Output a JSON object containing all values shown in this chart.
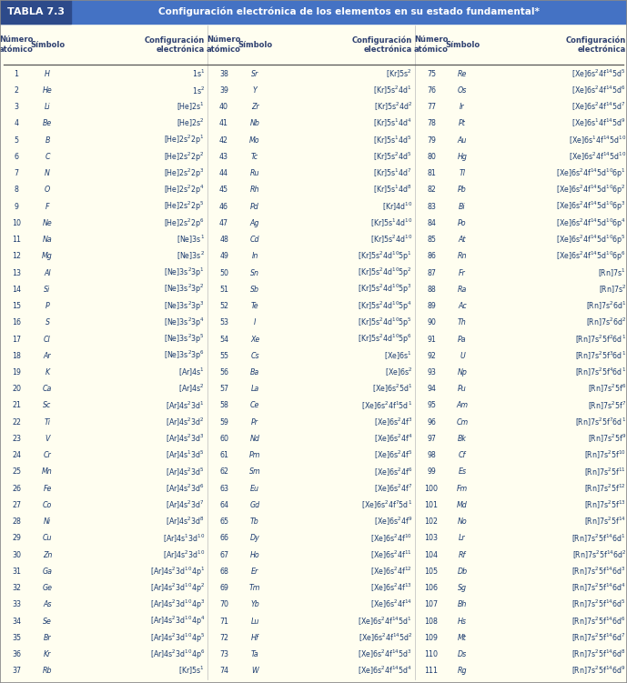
{
  "title": "TABLA 7.3",
  "title_text": "Configuración electrónica de los elementos en su estado fundamental*",
  "header_bg": "#5b8dd9",
  "header_bg2": "#4472c4",
  "table_bg": "#fffef0",
  "title_box_bg": "#2d4a8a",
  "header_text_color": "#ffffff",
  "col_header_color": "#2e4070",
  "data_color": "#1a3a6e",
  "rows": [
    [
      1,
      "H",
      "1s$^1$",
      38,
      "Sr",
      "[Kr]5s$^2$",
      75,
      "Re",
      "[Xe]6s$^2$4f$^{14}$5d$^5$"
    ],
    [
      2,
      "He",
      "1s$^2$",
      39,
      "Y",
      "[Kr]5s$^2$4d$^1$",
      76,
      "Os",
      "[Xe]6s$^2$4f$^{14}$5d$^6$"
    ],
    [
      3,
      "Li",
      "[He]2s$^1$",
      40,
      "Zr",
      "[Kr]5s$^2$4d$^2$",
      77,
      "Ir",
      "[Xe]6s$^2$4f$^{14}$5d$^7$"
    ],
    [
      4,
      "Be",
      "[He]2s$^2$",
      41,
      "Nb",
      "[Kr]5s$^1$4d$^4$",
      78,
      "Pt",
      "[Xe]6s$^1$4f$^{14}$5d$^9$"
    ],
    [
      5,
      "B",
      "[He]2s$^2$2p$^1$",
      42,
      "Mo",
      "[Kr]5s$^1$4d$^5$",
      79,
      "Au",
      "[Xe]6s$^1$4f$^{14}$5d$^{10}$"
    ],
    [
      6,
      "C",
      "[He]2s$^2$2p$^2$",
      43,
      "Tc",
      "[Kr]5s$^2$4d$^5$",
      80,
      "Hg",
      "[Xe]6s$^2$4f$^{14}$5d$^{10}$"
    ],
    [
      7,
      "N",
      "[He]2s$^2$2p$^3$",
      44,
      "Ru",
      "[Kr]5s$^1$4d$^7$",
      81,
      "Tl",
      "[Xe]6s$^2$4f$^{14}$5d$^{10}$6p$^1$"
    ],
    [
      8,
      "O",
      "[He]2s$^2$2p$^4$",
      45,
      "Rh",
      "[Kr]5s$^1$4d$^8$",
      82,
      "Pb",
      "[Xe]6s$^2$4f$^{14}$5d$^{10}$6p$^2$"
    ],
    [
      9,
      "F",
      "[He]2s$^2$2p$^5$",
      46,
      "Pd",
      "[Kr]4d$^{10}$",
      83,
      "Bi",
      "[Xe]6s$^2$4f$^{14}$5d$^{10}$6p$^3$"
    ],
    [
      10,
      "Ne",
      "[He]2s$^2$2p$^6$",
      47,
      "Ag",
      "[Kr]5s$^1$4d$^{10}$",
      84,
      "Po",
      "[Xe]6s$^2$4f$^{14}$5d$^{10}$6p$^4$"
    ],
    [
      11,
      "Na",
      "[Ne]3s$^1$",
      48,
      "Cd",
      "[Kr]5s$^2$4d$^{10}$",
      85,
      "At",
      "[Xe]6s$^2$4f$^{14}$5d$^{10}$6p$^5$"
    ],
    [
      12,
      "Mg",
      "[Ne]3s$^2$",
      49,
      "In",
      "[Kr]5s$^2$4d$^{10}$5p$^1$",
      86,
      "Rn",
      "[Xe]6s$^2$4f$^{14}$5d$^{10}$6p$^6$"
    ],
    [
      13,
      "Al",
      "[Ne]3s$^2$3p$^1$",
      50,
      "Sn",
      "[Kr]5s$^2$4d$^{10}$5p$^2$",
      87,
      "Fr",
      "[Rn]7s$^1$"
    ],
    [
      14,
      "Si",
      "[Ne]3s$^2$3p$^2$",
      51,
      "Sb",
      "[Kr]5s$^2$4d$^{10}$5p$^3$",
      88,
      "Ra",
      "[Rn]7s$^2$"
    ],
    [
      15,
      "P",
      "[Ne]3s$^2$3p$^3$",
      52,
      "Te",
      "[Kr]5s$^2$4d$^{10}$5p$^4$",
      89,
      "Ac",
      "[Rn]7s$^2$6d$^1$"
    ],
    [
      16,
      "S",
      "[Ne]3s$^2$3p$^4$",
      53,
      "I",
      "[Kr]5s$^2$4d$^{10}$5p$^5$",
      90,
      "Th",
      "[Rn]7s$^2$6d$^2$"
    ],
    [
      17,
      "Cl",
      "[Ne]3s$^2$3p$^5$",
      54,
      "Xe",
      "[Kr]5s$^2$4d$^{10}$5p$^6$",
      91,
      "Pa",
      "[Rn]7s$^2$5f$^2$6d$^1$"
    ],
    [
      18,
      "Ar",
      "[Ne]3s$^2$3p$^6$",
      55,
      "Cs",
      "[Xe]6s$^1$",
      92,
      "U",
      "[Rn]7s$^2$5f$^3$6d$^1$"
    ],
    [
      19,
      "K",
      "[Ar]4s$^1$",
      56,
      "Ba",
      "[Xe]6s$^2$",
      93,
      "Np",
      "[Rn]7s$^2$5f$^4$6d$^1$"
    ],
    [
      20,
      "Ca",
      "[Ar]4s$^2$",
      57,
      "La",
      "[Xe]6s$^2$5d$^1$",
      94,
      "Pu",
      "[Rn]7s$^2$5f$^6$"
    ],
    [
      21,
      "Sc",
      "[Ar]4s$^2$3d$^1$",
      58,
      "Ce",
      "[Xe]6s$^2$4f$^1$5d$^1$",
      95,
      "Am",
      "[Rn]7s$^2$5f$^7$"
    ],
    [
      22,
      "Ti",
      "[Ar]4s$^2$3d$^2$",
      59,
      "Pr",
      "[Xe]6s$^2$4f$^3$",
      96,
      "Cm",
      "[Rn]7s$^2$5f$^7$6d$^1$"
    ],
    [
      23,
      "V",
      "[Ar]4s$^2$3d$^3$",
      60,
      "Nd",
      "[Xe]6s$^2$4f$^4$",
      97,
      "Bk",
      "[Rn]7s$^2$5f$^9$"
    ],
    [
      24,
      "Cr",
      "[Ar]4s$^1$3d$^5$",
      61,
      "Pm",
      "[Xe]6s$^2$4f$^5$",
      98,
      "Cf",
      "[Rn]7s$^2$5f$^{10}$"
    ],
    [
      25,
      "Mn",
      "[Ar]4s$^2$3d$^5$",
      62,
      "Sm",
      "[Xe]6s$^2$4f$^6$",
      99,
      "Es",
      "[Rn]7s$^2$5f$^{11}$"
    ],
    [
      26,
      "Fe",
      "[Ar]4s$^2$3d$^6$",
      63,
      "Eu",
      "[Xe]6s$^2$4f$^7$",
      100,
      "Fm",
      "[Rn]7s$^2$5f$^{12}$"
    ],
    [
      27,
      "Co",
      "[Ar]4s$^2$3d$^7$",
      64,
      "Gd",
      "[Xe]6s$^2$4f$^7$5d$^1$",
      101,
      "Md",
      "[Rn]7s$^2$5f$^{13}$"
    ],
    [
      28,
      "Ni",
      "[Ar]4s$^2$3d$^8$",
      65,
      "Tb",
      "[Xe]6s$^2$4f$^9$",
      102,
      "No",
      "[Rn]7s$^2$5f$^{14}$"
    ],
    [
      29,
      "Cu",
      "[Ar]4s$^1$3d$^{10}$",
      66,
      "Dy",
      "[Xe]6s$^2$4f$^{10}$",
      103,
      "Lr",
      "[Rn]7s$^2$5f$^{14}$6d$^1$"
    ],
    [
      30,
      "Zn",
      "[Ar]4s$^2$3d$^{10}$",
      67,
      "Ho",
      "[Xe]6s$^2$4f$^{11}$",
      104,
      "Rf",
      "[Rn]7s$^2$5f$^{14}$6d$^2$"
    ],
    [
      31,
      "Ga",
      "[Ar]4s$^2$3d$^{10}$4p$^1$",
      68,
      "Er",
      "[Xe]6s$^2$4f$^{12}$",
      105,
      "Db",
      "[Rn]7s$^2$5f$^{14}$6d$^3$"
    ],
    [
      32,
      "Ge",
      "[Ar]4s$^2$3d$^{10}$4p$^2$",
      69,
      "Tm",
      "[Xe]6s$^2$4f$^{13}$",
      106,
      "Sg",
      "[Rn]7s$^2$5f$^{14}$6d$^4$"
    ],
    [
      33,
      "As",
      "[Ar]4s$^2$3d$^{10}$4p$^3$",
      70,
      "Yb",
      "[Xe]6s$^2$4f$^{14}$",
      107,
      "Bh",
      "[Rn]7s$^2$5f$^{14}$6d$^5$"
    ],
    [
      34,
      "Se",
      "[Ar]4s$^2$3d$^{10}$4p$^4$",
      71,
      "Lu",
      "[Xe]6s$^2$4f$^{14}$5d$^1$",
      108,
      "Hs",
      "[Rn]7s$^2$5f$^{14}$6d$^6$"
    ],
    [
      35,
      "Br",
      "[Ar]4s$^2$3d$^{10}$4p$^5$",
      72,
      "Hf",
      "[Xe]6s$^2$4f$^{14}$5d$^2$",
      109,
      "Mt",
      "[Rn]7s$^2$5f$^{14}$6d$^7$"
    ],
    [
      36,
      "Kr",
      "[Ar]4s$^2$3d$^{10}$4p$^6$",
      73,
      "Ta",
      "[Xe]6s$^2$4f$^{14}$5d$^3$",
      110,
      "Ds",
      "[Rn]7s$^2$5f$^{14}$6d$^8$"
    ],
    [
      37,
      "Rb",
      "[Kr]5s$^1$",
      74,
      "W",
      "[Xe]6s$^2$4f$^{14}$5d$^4$",
      111,
      "Rg",
      "[Rn]7s$^2$5f$^{14}$6d$^9$"
    ]
  ]
}
